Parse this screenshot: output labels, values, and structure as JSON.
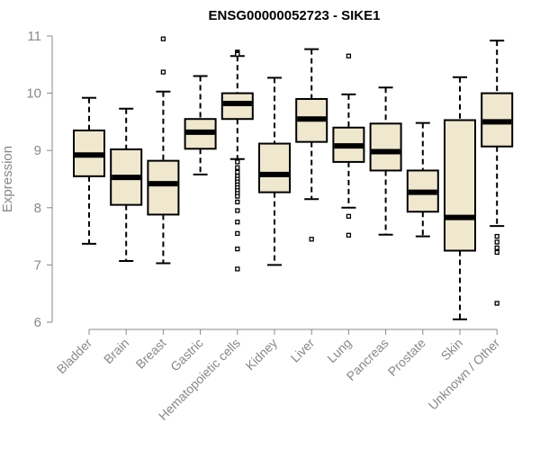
{
  "chart_data": {
    "type": "boxplot",
    "title": "ENSG00000052723 - SIKE1",
    "xlabel": "",
    "ylabel": "Expression",
    "ylim": [
      6,
      11
    ],
    "yticks": [
      6,
      7,
      8,
      9,
      10,
      11
    ],
    "box_color": "#efe8cf",
    "categories": [
      "Bladder",
      "Brain",
      "Breast",
      "Gastric",
      "Hematopoietic cells",
      "Kidney",
      "Liver",
      "Lung",
      "Pancreas",
      "Prostate",
      "Skin",
      "Unknown / Other"
    ],
    "boxes": [
      {
        "name": "Bladder",
        "whisker_low": 7.37,
        "q1": 8.55,
        "median": 8.92,
        "q3": 9.35,
        "whisker_high": 9.92,
        "outliers": []
      },
      {
        "name": "Brain",
        "whisker_low": 7.07,
        "q1": 8.05,
        "median": 8.53,
        "q3": 9.02,
        "whisker_high": 9.73,
        "outliers": []
      },
      {
        "name": "Breast",
        "whisker_low": 7.03,
        "q1": 7.88,
        "median": 8.42,
        "q3": 8.82,
        "whisker_high": 10.03,
        "outliers": [
          10.37,
          10.95
        ]
      },
      {
        "name": "Gastric",
        "whisker_low": 8.58,
        "q1": 9.03,
        "median": 9.32,
        "q3": 9.55,
        "whisker_high": 10.3,
        "outliers": []
      },
      {
        "name": "Hematopoietic cells",
        "whisker_low": 8.85,
        "q1": 9.55,
        "median": 9.82,
        "q3": 10.0,
        "whisker_high": 10.65,
        "outliers": [
          10.72,
          10.7,
          10.68,
          8.8,
          8.7,
          8.62,
          8.55,
          8.5,
          8.45,
          8.4,
          8.35,
          8.3,
          8.25,
          8.2,
          8.1,
          7.95,
          7.75,
          7.55,
          7.28,
          6.93
        ]
      },
      {
        "name": "Kidney",
        "whisker_low": 7.0,
        "q1": 8.27,
        "median": 8.58,
        "q3": 9.12,
        "whisker_high": 10.27,
        "outliers": []
      },
      {
        "name": "Liver",
        "whisker_low": 8.15,
        "q1": 9.15,
        "median": 9.55,
        "q3": 9.9,
        "whisker_high": 10.77,
        "outliers": [
          7.45
        ]
      },
      {
        "name": "Lung",
        "whisker_low": 8.0,
        "q1": 8.8,
        "median": 9.08,
        "q3": 9.4,
        "whisker_high": 9.98,
        "outliers": [
          10.65,
          7.85,
          7.52
        ]
      },
      {
        "name": "Pancreas",
        "whisker_low": 7.53,
        "q1": 8.65,
        "median": 8.98,
        "q3": 9.47,
        "whisker_high": 10.1,
        "outliers": []
      },
      {
        "name": "Prostate",
        "whisker_low": 7.5,
        "q1": 7.93,
        "median": 8.27,
        "q3": 8.65,
        "whisker_high": 9.48,
        "outliers": []
      },
      {
        "name": "Skin",
        "whisker_low": 6.05,
        "q1": 7.25,
        "median": 7.83,
        "q3": 9.53,
        "whisker_high": 10.28,
        "outliers": []
      },
      {
        "name": "Unknown / Other",
        "whisker_low": 7.68,
        "q1": 9.07,
        "median": 9.5,
        "q3": 10.0,
        "whisker_high": 10.92,
        "outliers": [
          7.5,
          7.4,
          7.3,
          7.22,
          6.33
        ]
      }
    ]
  }
}
